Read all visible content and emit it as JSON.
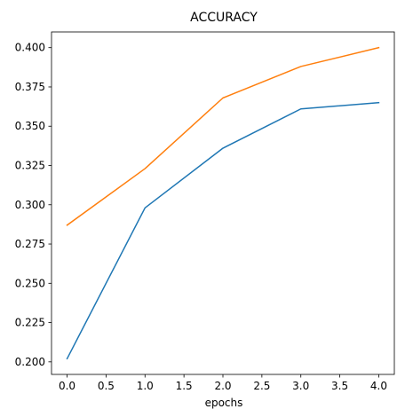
{
  "chart_data": {
    "type": "line",
    "title": "ACCURACY",
    "xlabel": "epochs",
    "ylabel": "",
    "x": [
      0,
      1,
      2,
      3,
      4
    ],
    "xlim": [
      -0.2,
      4.2
    ],
    "ylim": [
      0.192,
      0.41
    ],
    "xticks": [
      0.0,
      0.5,
      1.0,
      1.5,
      2.0,
      2.5,
      3.0,
      3.5,
      4.0
    ],
    "xtick_labels": [
      "0.0",
      "0.5",
      "1.0",
      "1.5",
      "2.0",
      "2.5",
      "3.0",
      "3.5",
      "4.0"
    ],
    "yticks": [
      0.2,
      0.225,
      0.25,
      0.275,
      0.3,
      0.325,
      0.35,
      0.375,
      0.4
    ],
    "ytick_labels": [
      "0.200",
      "0.225",
      "0.250",
      "0.275",
      "0.300",
      "0.325",
      "0.350",
      "0.375",
      "0.400"
    ],
    "grid": false,
    "legend": false,
    "series": [
      {
        "color": "#1f77b4",
        "values": [
          0.202,
          0.298,
          0.336,
          0.361,
          0.365
        ]
      },
      {
        "color": "#ff7f0e",
        "values": [
          0.287,
          0.323,
          0.368,
          0.388,
          0.4
        ]
      }
    ]
  }
}
